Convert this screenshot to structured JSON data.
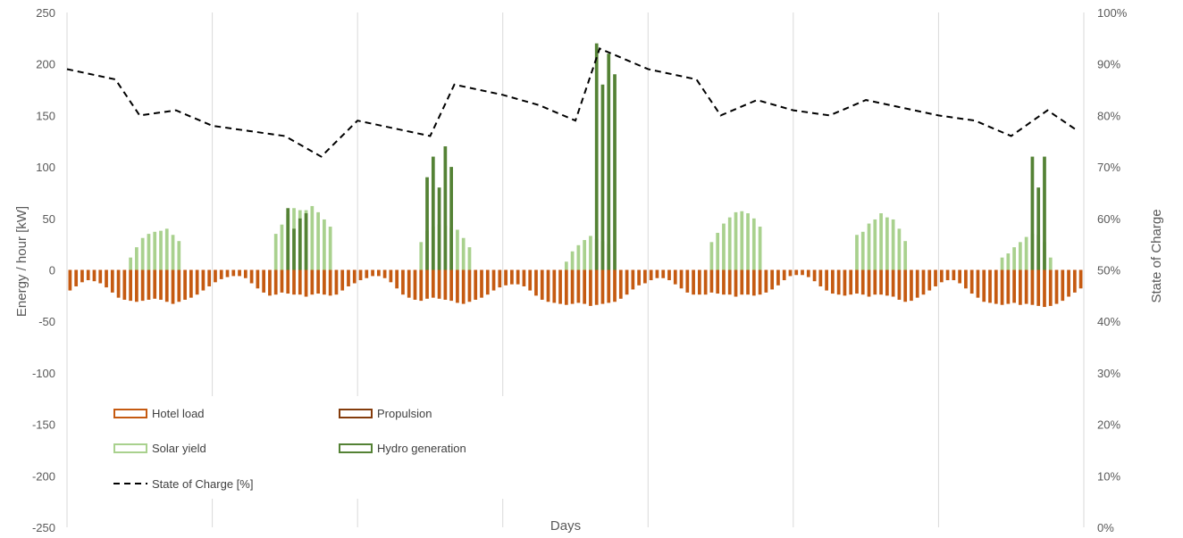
{
  "chart_data": {
    "type": "bar",
    "xlabel": "Days",
    "ylabel": "Energy / hour  [kW]",
    "y2label": "State of Charge",
    "ylim": [
      -250,
      250
    ],
    "y_ticks": [
      "250",
      "200",
      "150",
      "100",
      "50",
      "0",
      "-50",
      "-100",
      "-150",
      "-200",
      "-250"
    ],
    "y2lim": [
      0,
      100
    ],
    "y2_ticks": [
      "100%",
      "90%",
      "80%",
      "70%",
      "60%",
      "50%",
      "40%",
      "30%",
      "20%",
      "10%",
      "0%"
    ],
    "grid": "vertical day separators",
    "hours_per_day": 24,
    "days": 7,
    "legend": {
      "placement": "bottom-left, inside plot",
      "entries": [
        "Hotel load",
        "Propulsion",
        "Solar yield",
        "Hydro generation",
        "State of Charge [%]"
      ]
    },
    "colors": {
      "hotel": "#c55a11",
      "propulsion": "#843c0c",
      "solar": "#a9d18e",
      "hydro": "#548235",
      "soc": "#000000",
      "grid": "#d9d9d9",
      "tick": "#595959"
    },
    "series": [
      {
        "name": "Hotel load",
        "key": "hotel",
        "values": [
          -20,
          -16,
          -12,
          -10,
          -11,
          -13,
          -17,
          -22,
          -27,
          -29,
          -30,
          -31,
          -30,
          -29,
          -28,
          -29,
          -31,
          -33,
          -31,
          -29,
          -27,
          -24,
          -20,
          -16,
          -12,
          -9,
          -7,
          -6,
          -6,
          -8,
          -13,
          -18,
          -22,
          -25,
          -24,
          -22,
          -23,
          -24,
          -24,
          -26,
          -24,
          -23,
          -24,
          -25,
          -24,
          -20,
          -16,
          -13,
          -10,
          -8,
          -6,
          -6,
          -8,
          -12,
          -18,
          -24,
          -27,
          -29,
          -30,
          -28,
          -27,
          -28,
          -29,
          -30,
          -32,
          -33,
          -31,
          -29,
          -27,
          -24,
          -20,
          -17,
          -15,
          -14,
          -14,
          -16,
          -20,
          -25,
          -29,
          -31,
          -32,
          -33,
          -34,
          -33,
          -32,
          -33,
          -35,
          -34,
          -33,
          -32,
          -31,
          -28,
          -24,
          -19,
          -15,
          -13,
          -10,
          -8,
          -8,
          -10,
          -14,
          -18,
          -22,
          -24,
          -24,
          -24,
          -22,
          -23,
          -24,
          -24,
          -26,
          -24,
          -24,
          -25,
          -24,
          -22,
          -19,
          -15,
          -10,
          -6,
          -5,
          -5,
          -7,
          -11,
          -16,
          -20,
          -23,
          -24,
          -25,
          -24,
          -23,
          -24,
          -26,
          -24,
          -24,
          -25,
          -26,
          -29,
          -31,
          -30,
          -27,
          -24,
          -20,
          -16,
          -12,
          -10,
          -10,
          -13,
          -18,
          -23,
          -27,
          -31,
          -32,
          -33,
          -34,
          -33,
          -32,
          -34,
          -33,
          -34,
          -35,
          -36,
          -35,
          -33,
          -30,
          -26,
          -22,
          -18
        ]
      },
      {
        "name": "Propulsion",
        "key": "propulsion",
        "values": [
          0,
          0,
          0,
          0,
          0,
          0,
          0,
          0,
          0,
          0,
          0,
          0,
          0,
          0,
          0,
          0,
          0,
          0,
          0,
          0,
          0,
          0,
          0,
          0,
          0,
          0,
          0,
          0,
          0,
          0,
          0,
          0,
          0,
          0,
          0,
          0,
          0,
          0,
          0,
          0,
          0,
          0,
          0,
          0,
          0,
          0,
          0,
          0,
          0,
          0,
          0,
          0,
          0,
          0,
          0,
          0,
          0,
          0,
          0,
          0,
          0,
          0,
          0,
          0,
          0,
          0,
          0,
          0,
          0,
          0,
          0,
          0,
          0,
          0,
          0,
          0,
          0,
          0,
          0,
          0,
          0,
          0,
          0,
          0,
          0,
          0,
          0,
          0,
          0,
          0,
          0,
          0,
          0,
          0,
          0,
          0,
          0,
          0,
          0,
          0,
          0,
          0,
          0,
          0,
          0,
          0,
          0,
          0,
          0,
          0,
          0,
          0,
          0,
          0,
          0,
          0,
          0,
          0,
          0,
          0,
          0,
          0,
          0,
          0,
          0,
          0,
          0,
          0,
          0,
          0,
          0,
          0,
          0,
          0,
          0,
          0,
          0,
          0,
          0,
          0,
          0,
          0,
          0,
          0,
          0,
          0,
          0,
          0,
          0,
          0,
          0,
          0,
          0,
          0,
          0,
          0,
          0,
          0,
          0,
          0,
          0,
          0,
          0,
          0,
          0,
          0,
          0,
          0
        ]
      },
      {
        "name": "Solar yield",
        "key": "solar",
        "values": [
          0,
          0,
          0,
          0,
          0,
          0,
          0,
          0,
          0,
          0,
          12,
          22,
          31,
          35,
          37,
          38,
          40,
          34,
          28,
          0,
          0,
          0,
          0,
          0,
          0,
          0,
          0,
          0,
          0,
          0,
          0,
          0,
          0,
          0,
          35,
          44,
          54,
          60,
          58,
          58,
          62,
          56,
          49,
          42,
          0,
          0,
          0,
          0,
          0,
          0,
          0,
          0,
          0,
          0,
          0,
          0,
          0,
          0,
          27,
          38,
          42,
          44,
          43,
          41,
          39,
          31,
          22,
          0,
          0,
          0,
          0,
          0,
          0,
          0,
          0,
          0,
          0,
          0,
          0,
          0,
          0,
          0,
          8,
          18,
          24,
          29,
          33,
          30,
          28,
          25,
          0,
          0,
          0,
          0,
          0,
          0,
          0,
          0,
          0,
          0,
          0,
          0,
          0,
          0,
          0,
          0,
          27,
          36,
          45,
          51,
          56,
          57,
          55,
          50,
          42,
          0,
          0,
          0,
          0,
          0,
          0,
          0,
          0,
          0,
          0,
          0,
          0,
          0,
          0,
          0,
          34,
          37,
          45,
          49,
          55,
          51,
          49,
          40,
          28,
          0,
          0,
          0,
          0,
          0,
          0,
          0,
          0,
          0,
          0,
          0,
          0,
          0,
          0,
          0,
          12,
          16,
          22,
          27,
          32,
          35,
          34,
          27,
          12,
          0,
          0,
          0,
          0,
          0
        ]
      },
      {
        "name": "Hydro generation",
        "key": "hydro",
        "values": [
          0,
          0,
          0,
          0,
          0,
          0,
          0,
          0,
          0,
          0,
          0,
          0,
          0,
          0,
          0,
          0,
          0,
          0,
          0,
          0,
          0,
          0,
          0,
          0,
          0,
          0,
          0,
          0,
          0,
          0,
          0,
          0,
          0,
          0,
          0,
          0,
          60,
          40,
          50,
          55,
          0,
          0,
          0,
          0,
          0,
          0,
          0,
          0,
          0,
          0,
          0,
          0,
          0,
          0,
          0,
          0,
          0,
          0,
          0,
          90,
          110,
          80,
          120,
          100,
          0,
          0,
          0,
          0,
          0,
          0,
          0,
          0,
          0,
          0,
          0,
          0,
          0,
          0,
          0,
          0,
          0,
          0,
          0,
          0,
          0,
          0,
          0,
          220,
          180,
          210,
          190,
          0,
          0,
          0,
          0,
          0,
          0,
          0,
          0,
          0,
          0,
          0,
          0,
          0,
          0,
          0,
          0,
          0,
          0,
          0,
          0,
          0,
          0,
          0,
          0,
          0,
          0,
          0,
          0,
          0,
          0,
          0,
          0,
          0,
          0,
          0,
          0,
          0,
          0,
          0,
          0,
          0,
          0,
          0,
          0,
          0,
          0,
          0,
          0,
          0,
          0,
          0,
          0,
          0,
          0,
          0,
          0,
          0,
          0,
          0,
          0,
          0,
          0,
          0,
          0,
          0,
          0,
          0,
          0,
          110,
          80,
          110,
          0,
          0,
          0,
          0,
          0,
          0
        ]
      },
      {
        "name": "State of Charge [%]",
        "key": "soc",
        "axis": "right",
        "x": [
          0,
          8,
          12,
          18,
          24,
          30,
          36,
          42,
          48,
          60,
          64,
          72,
          78,
          84,
          88,
          96,
          104,
          108,
          114,
          120,
          126,
          132,
          144,
          150,
          156,
          162,
          167
        ],
        "values": [
          89,
          87,
          80,
          81,
          78,
          77,
          76,
          72,
          79,
          76,
          86,
          84,
          82,
          79,
          93,
          89,
          87,
          80,
          83,
          81,
          80,
          83,
          80,
          79,
          76,
          81,
          77
        ]
      }
    ]
  }
}
